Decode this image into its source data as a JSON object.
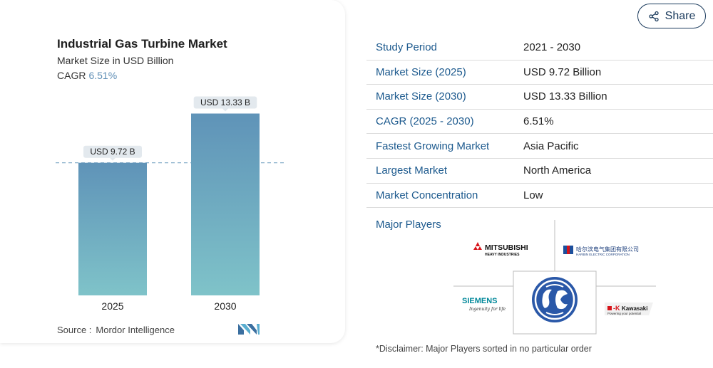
{
  "share": {
    "label": "Share",
    "icon": "share-icon"
  },
  "chart": {
    "title": "Industrial Gas Turbine Market",
    "subtitle": "Market Size in USD Billion",
    "cagr_label": "CAGR",
    "cagr_value": "6.51%",
    "source_label": "Source :",
    "source_value": "Mordor Intelligence"
  },
  "chart_data": {
    "type": "bar",
    "title": "Industrial Gas Turbine Market",
    "subtitle": "Market Size in USD Billion",
    "categories": [
      "2025",
      "2030"
    ],
    "values": [
      9.72,
      13.33
    ],
    "data_labels": [
      "USD 9.72 B",
      "USD 13.33 B"
    ],
    "ylim": [
      0,
      18
    ],
    "reference_line": 9.72,
    "grid": false,
    "colors": {
      "bar_top": "#5f93b8",
      "bar_bottom": "#7fc3c9",
      "label_bg": "#e3e9ee",
      "ref_line": "#7aa6c4"
    }
  },
  "stats": [
    {
      "label": "Study Period",
      "value": "2021 - 2030"
    },
    {
      "label": "Market Size (2025)",
      "value": "USD 9.72 Billion"
    },
    {
      "label": "Market Size (2030)",
      "value": "USD 13.33 Billion"
    },
    {
      "label": "CAGR (2025 - 2030)",
      "value": "6.51%"
    },
    {
      "label": "Fastest Growing Market",
      "value": "Asia Pacific"
    },
    {
      "label": "Largest Market",
      "value": "North America"
    },
    {
      "label": "Market Concentration",
      "value": "Low"
    }
  ],
  "major_players": {
    "title": "Major Players",
    "logos": {
      "mitsubishi": "MITSUBISHI",
      "mitsubishi_sub": "HEAVY INDUSTRIES",
      "harbin": "哈尔滨电气集团有限公司",
      "harbin_sub": "HARBIN ELECTRIC CORPORATION",
      "siemens": "SIEMENS",
      "siemens_tag": "Ingenuity for life",
      "kawasaki": "Kawasaki",
      "kawasaki_tag": "Powering your potential"
    }
  },
  "disclaimer": "*Disclaimer: Major Players sorted in no particular order"
}
